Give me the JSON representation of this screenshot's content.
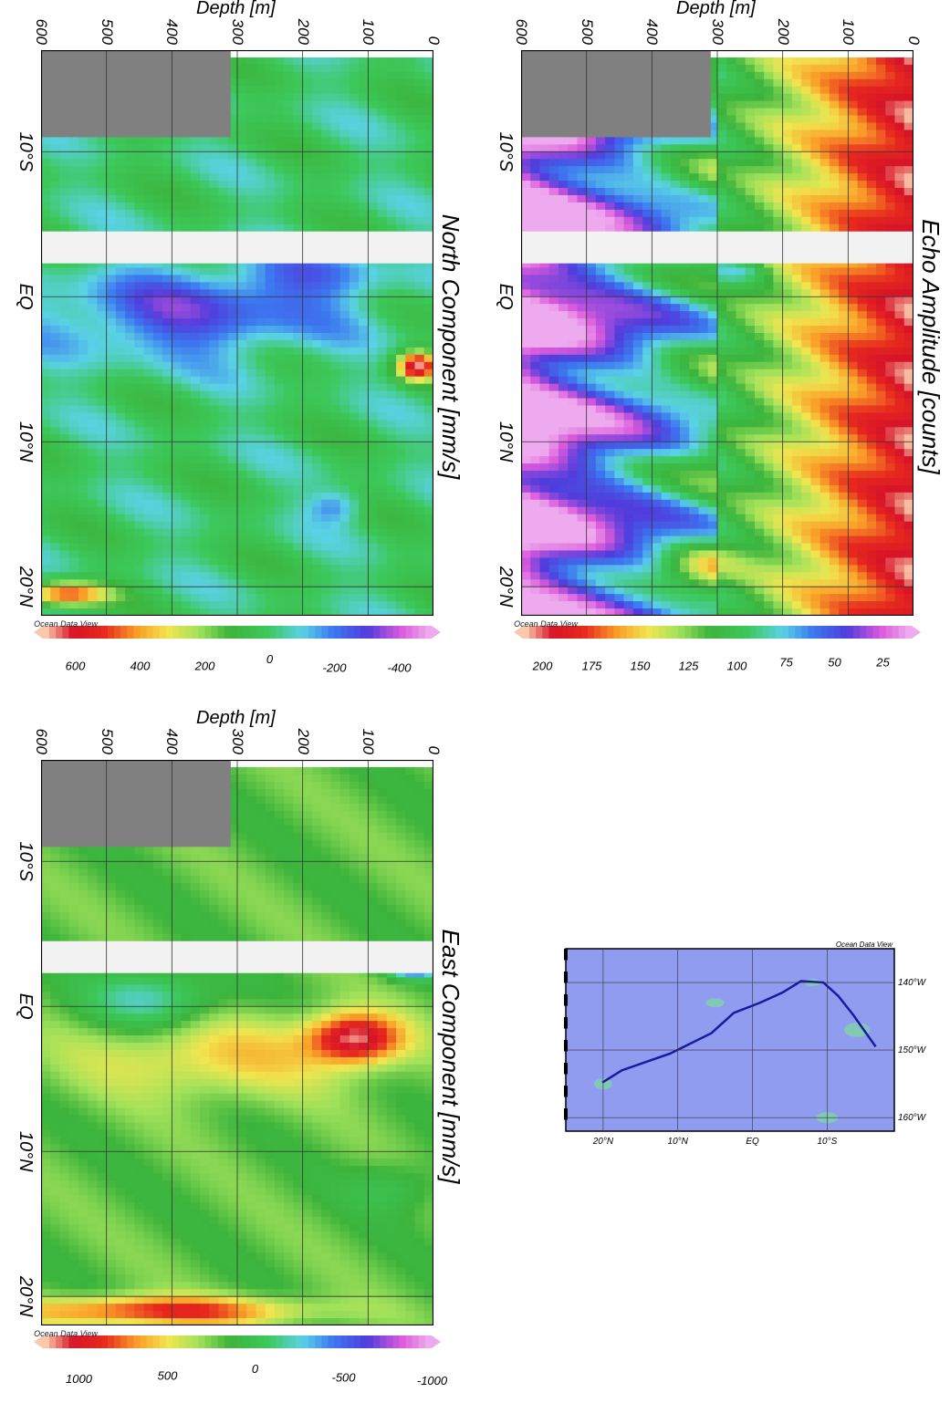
{
  "chart_data": [
    {
      "type": "heatmap",
      "title": "North Component [mm/s]",
      "ylabel": "Depth [m]",
      "xlabel": "",
      "x_ticks": [
        "10°S",
        "EQ",
        "10°N",
        "20°N"
      ],
      "x_tick_values": [
        -10,
        0,
        10,
        20
      ],
      "xlim": [
        -17,
        22
      ],
      "y_ticks": [
        "0",
        "100",
        "200",
        "300",
        "400",
        "500",
        "600"
      ],
      "ylim": [
        0,
        600
      ],
      "y_inverted": true,
      "colorbar": {
        "ticks": [
          "600",
          "400",
          "200",
          "0",
          "-200",
          "-400"
        ],
        "tick_values": [
          600,
          400,
          200,
          0,
          -200,
          -400
        ],
        "range": [
          -500,
          700
        ]
      },
      "gap_lat": [
        -4.5,
        -2.3
      ],
      "masked_region": {
        "lat": [
          -17,
          -11
        ],
        "depth": [
          310,
          600
        ]
      },
      "watermark": "Ocean Data View"
    },
    {
      "type": "heatmap",
      "title": "East Component [mm/s]",
      "ylabel": "Depth [m]",
      "xlabel": "",
      "x_ticks": [
        "10°S",
        "EQ",
        "10°N",
        "20°N"
      ],
      "x_tick_values": [
        -10,
        0,
        10,
        20
      ],
      "xlim": [
        -17,
        22
      ],
      "y_ticks": [
        "0",
        "100",
        "200",
        "300",
        "400",
        "500",
        "600"
      ],
      "ylim": [
        0,
        600
      ],
      "y_inverted": true,
      "colorbar": {
        "ticks": [
          "1000",
          "500",
          "0",
          "-500",
          "-1000"
        ],
        "tick_values": [
          1000,
          500,
          0,
          -500,
          -1000
        ],
        "range": [
          -1000,
          1200
        ]
      },
      "gap_lat": [
        -4.5,
        -2.3
      ],
      "masked_region": {
        "lat": [
          -17,
          -11
        ],
        "depth": [
          310,
          600
        ]
      },
      "watermark": "Ocean Data View"
    },
    {
      "type": "heatmap",
      "title": "Echo Amplitude [counts]",
      "ylabel": "Depth [m]",
      "xlabel": "",
      "x_ticks": [
        "10°S",
        "EQ",
        "10°N",
        "20°N"
      ],
      "x_tick_values": [
        -10,
        0,
        10,
        20
      ],
      "xlim": [
        -17,
        22
      ],
      "y_ticks": [
        "0",
        "100",
        "200",
        "300",
        "400",
        "500",
        "600"
      ],
      "ylim": [
        0,
        600
      ],
      "y_inverted": true,
      "colorbar": {
        "ticks": [
          "200",
          "175",
          "150",
          "125",
          "100",
          "75",
          "50",
          "25"
        ],
        "tick_values": [
          200,
          175,
          150,
          125,
          100,
          75,
          50,
          25
        ],
        "range": [
          10,
          210
        ]
      },
      "gap_lat": [
        -4.5,
        -2.3
      ],
      "masked_region": {
        "lat": [
          -17,
          -11
        ],
        "depth": [
          310,
          600
        ]
      },
      "watermark": "Ocean Data View"
    }
  ],
  "map": {
    "lat_ticks": [
      "20°N",
      "10°N",
      "EQ",
      "10°S"
    ],
    "lon_ticks": [
      "160°W",
      "150°W",
      "140°W"
    ],
    "watermark": "Ocean Data View",
    "track": [
      {
        "lon": -154.8,
        "lat": 20.1
      },
      {
        "lon": -153.0,
        "lat": 17.5
      },
      {
        "lon": -150.5,
        "lat": 11.0
      },
      {
        "lon": -147.5,
        "lat": 5.5
      },
      {
        "lon": -144.5,
        "lat": 2.5
      },
      {
        "lon": -143.0,
        "lat": -1.0
      },
      {
        "lon": -141.5,
        "lat": -4.0
      },
      {
        "lon": -139.8,
        "lat": -6.5
      },
      {
        "lon": -140.0,
        "lat": -9.5
      },
      {
        "lon": -142.0,
        "lat": -11.5
      },
      {
        "lon": -144.8,
        "lat": -13.5
      },
      {
        "lon": -149.5,
        "lat": -16.5
      }
    ]
  }
}
